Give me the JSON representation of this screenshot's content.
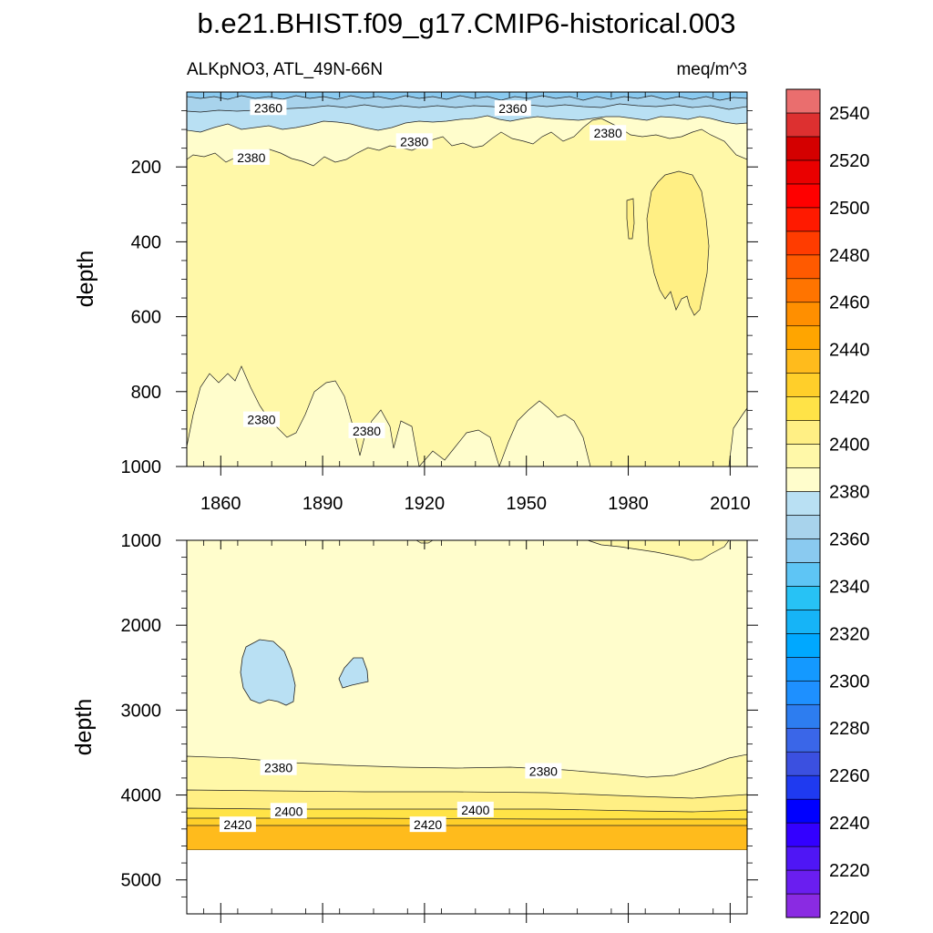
{
  "chart_data": {
    "title": "b.e21.BHIST.f09_g17.CMIP6-historical.003",
    "panels": [
      {
        "type": "heatmap",
        "subtitle_left": "ALKpNO3, ATL_49N-66N",
        "subtitle_right": "meq/m^3",
        "ylabel": "depth",
        "xlim": [
          1850,
          2015
        ],
        "ylim": [
          0,
          1000
        ],
        "y_reversed": true,
        "x_ticks": [
          1860,
          1890,
          1920,
          1950,
          1980,
          2010
        ],
        "x_tick_labels": [
          "1860",
          "1890",
          "1920",
          "1950",
          "1980",
          "2010"
        ],
        "y_ticks": [
          200,
          400,
          600,
          800,
          1000
        ],
        "y_tick_labels": [
          "200",
          "400",
          "600",
          "800",
          "1000"
        ],
        "contour_labels": [
          {
            "text": "2360",
            "x": 1874,
            "depth": 42
          },
          {
            "text": "2360",
            "x": 1946,
            "depth": 44
          },
          {
            "text": "2380",
            "x": 1869,
            "depth": 175
          },
          {
            "text": "2380",
            "x": 1917,
            "depth": 132
          },
          {
            "text": "2380",
            "x": 1974,
            "depth": 110
          },
          {
            "text": "2380",
            "x": 1872,
            "depth": 875
          },
          {
            "text": "2380",
            "x": 1903,
            "depth": 905
          }
        ]
      },
      {
        "type": "heatmap",
        "ylabel": "depth",
        "xlim": [
          1850,
          2015
        ],
        "ylim": [
          1000,
          5400
        ],
        "y_reversed": true,
        "x_ticks": [
          1860,
          1890,
          1920,
          1950,
          1980,
          2010
        ],
        "y_ticks": [
          1000,
          2000,
          3000,
          4000,
          5000
        ],
        "y_tick_labels": [
          "1000",
          "2000",
          "3000",
          "4000",
          "5000"
        ],
        "data_max_depth": 4620,
        "contour_labels": [
          {
            "text": "2380",
            "x": 1877,
            "depth": 3680
          },
          {
            "text": "2380",
            "x": 1955,
            "depth": 3720
          },
          {
            "text": "2400",
            "x": 1880,
            "depth": 4190
          },
          {
            "text": "2400",
            "x": 1935,
            "depth": 4175
          },
          {
            "text": "2420",
            "x": 1865,
            "depth": 4350
          },
          {
            "text": "2420",
            "x": 1921,
            "depth": 4350
          }
        ]
      }
    ],
    "colorbar": {
      "levels": [
        2200,
        2210,
        2220,
        2230,
        2240,
        2250,
        2260,
        2270,
        2280,
        2290,
        2300,
        2310,
        2320,
        2330,
        2340,
        2350,
        2360,
        2370,
        2380,
        2390,
        2400,
        2410,
        2420,
        2430,
        2440,
        2450,
        2460,
        2470,
        2480,
        2490,
        2500,
        2510,
        2520,
        2530,
        2540,
        2550
      ],
      "colors": [
        "#8a2be2",
        "#6a1ef0",
        "#4f16f5",
        "#3300ff",
        "#0000ff",
        "#1f3af0",
        "#3b50e0",
        "#3a66e8",
        "#2d7df0",
        "#1e90ff",
        "#1499ff",
        "#00a8ff",
        "#16b4f7",
        "#27c2f5",
        "#5ec5f5",
        "#8acaf0",
        "#a8d3ec",
        "#b9e0f3",
        "#fffdcc",
        "#fff8a8",
        "#ffef84",
        "#ffe347",
        "#ffcf2a",
        "#ffbb1c",
        "#ffa500",
        "#ff8f00",
        "#ff7400",
        "#ff5a00",
        "#ff3c00",
        "#ff1a00",
        "#ff0000",
        "#ea0000",
        "#d40000",
        "#dd3030",
        "#ea6e6e",
        "#fbb1b1"
      ],
      "tick_values": [
        2200,
        2220,
        2240,
        2260,
        2280,
        2300,
        2320,
        2340,
        2360,
        2380,
        2400,
        2420,
        2440,
        2460,
        2480,
        2500,
        2520,
        2540
      ],
      "tick_labels": [
        "2200",
        "2220",
        "2240",
        "2260",
        "2280",
        "2300",
        "2320",
        "2340",
        "2360",
        "2380",
        "2400",
        "2420",
        "2440",
        "2460",
        "2480",
        "2500",
        "2520",
        "2540"
      ]
    }
  }
}
